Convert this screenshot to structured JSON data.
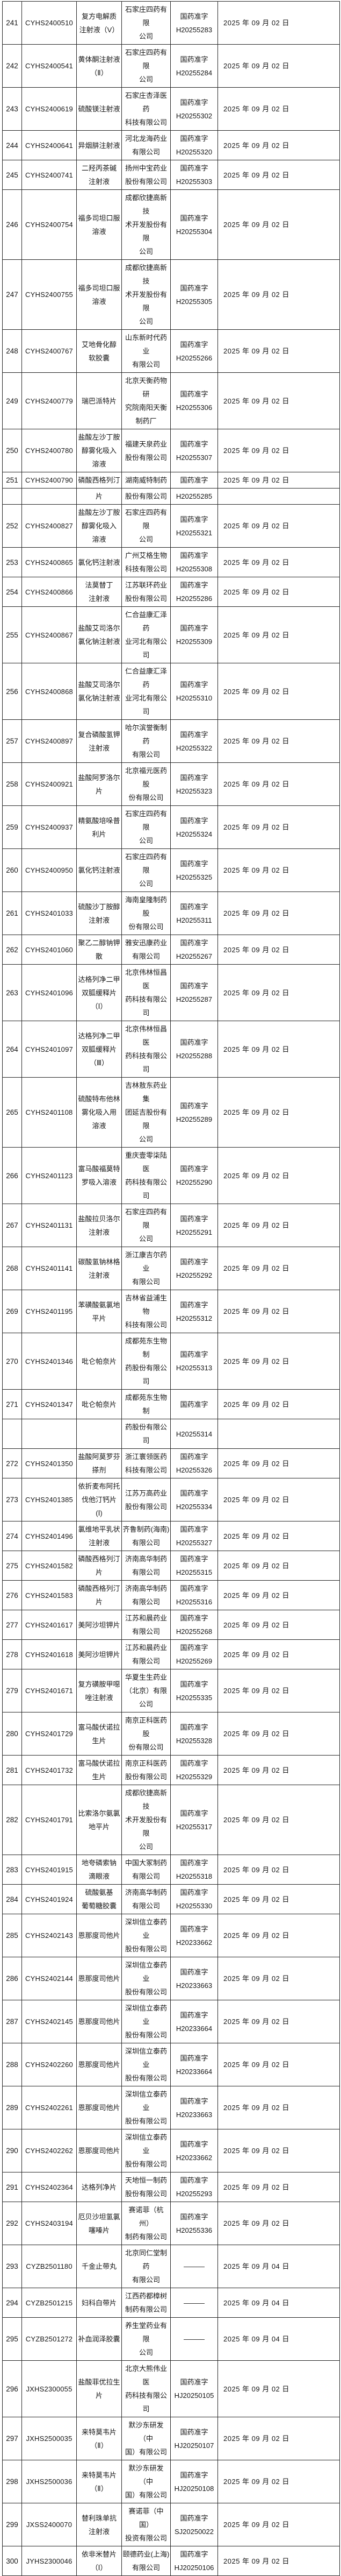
{
  "table": {
    "description_labels": {
      "approval_prefix": "国药准字",
      "no_approval_dash": "———"
    },
    "rows": [
      {
        "no": "241",
        "code": "CYHS2400510",
        "drug": "复方电解质\n注射液（V）",
        "company": "石家庄四药有限\n公司",
        "reg": "国药准字\nH20255283",
        "date": "2025 年 09 月 02 日",
        "fragment": false
      },
      {
        "no": "242",
        "code": "CYHS2400541",
        "drug": "黄体酮注射液\n（Ⅱ）",
        "company": "石家庄四药有限\n公司",
        "reg": "国药准字\nH20255284",
        "date": "2025 年 09 月 02 日",
        "fragment": false
      },
      {
        "no": "243",
        "code": "CYHS2400619",
        "drug": "硫酸镁注射液",
        "company": "石家庄杏泽医药\n科技有限公司",
        "reg": "国药准字\nH20255302",
        "date": "2025 年 09 月 02 日",
        "fragment": false
      },
      {
        "no": "244",
        "code": "CYHS2400641",
        "drug": "异烟肼注射液",
        "company": "河北龙海药业\n有限公司",
        "reg": "国药准字\nH20255320",
        "date": "2025 年 09 月 02 日",
        "fragment": false
      },
      {
        "no": "245",
        "code": "CYHS2400741",
        "drug": "二羟丙茶碱\n注射液",
        "company": "扬州中宝药业\n股份有限公司",
        "reg": "国药准字\nH20255303",
        "date": "2025 年 09 月 02 日",
        "fragment": false
      },
      {
        "no": "246",
        "code": "CYHS2400754",
        "drug": "福多司坦口服\n溶液",
        "company": "成都欣捷高新技\n术开发股份有限\n公司",
        "reg": "国药准字\nH20255304",
        "date": "2025 年 09 月 02 日",
        "fragment": false
      },
      {
        "no": "247",
        "code": "CYHS2400755",
        "drug": "福多司坦口服\n溶液",
        "company": "成都欣捷高新技\n术开发股份有限\n公司",
        "reg": "国药准字\nH20255305",
        "date": "2025 年 09 月 02 日",
        "fragment": false
      },
      {
        "no": "248",
        "code": "CYHS2400767",
        "drug": "艾地骨化醇\n软胶囊",
        "company": "山东新时代药业\n有限公司",
        "reg": "国药准字\nH20255266",
        "date": "2025 年 09 月 02 日",
        "fragment": false
      },
      {
        "no": "249",
        "code": "CYHS2400779",
        "drug": "瑞巴派特片",
        "company": "北京天衡药物研\n究院南阳天衡\n制药厂",
        "reg": "国药准字\nH20255306",
        "date": "2025 年 09 月 02 日",
        "fragment": false
      },
      {
        "no": "250",
        "code": "CYHS2400780",
        "drug": "盐酸左沙丁胺\n醇雾化吸入\n溶液",
        "company": "福建天泉药业\n股份有限公司",
        "reg": "国药准字\nH20255307",
        "date": "2025 年 09 月 02 日",
        "fragment": false
      },
      {
        "no": "251",
        "code": "CYHS2400790",
        "drug": "磷酸西格列汀",
        "company": "湖南威特制药",
        "reg": "国药准字",
        "date": "2025 年 09 月 02 日",
        "fragment": false
      },
      {
        "no": "",
        "code": "",
        "drug": "片",
        "company": "股份有限公司",
        "reg": "H20255285",
        "date": "",
        "fragment": true
      },
      {
        "no": "252",
        "code": "CYHS2400827",
        "drug": "盐酸左沙丁胺\n醇雾化吸入\n溶液",
        "company": "石家庄四药有限\n公司",
        "reg": "国药准字\nH20255321",
        "date": "2025 年 09 月 02 日",
        "fragment": false
      },
      {
        "no": "253",
        "code": "CYHS2400865",
        "drug": "氯化钙注射液",
        "company": "广州艾格生物\n科技有限公司",
        "reg": "国药准字\nH20255308",
        "date": "2025 年 09 月 02 日",
        "fragment": false
      },
      {
        "no": "254",
        "code": "CYHS2400866",
        "drug": "法莫替丁\n注射液",
        "company": "江苏联环药业\n股份有限公司",
        "reg": "国药准字\nH20255286",
        "date": "2025 年 09 月 02 日",
        "fragment": false
      },
      {
        "no": "255",
        "code": "CYHS2400867",
        "drug": "盐酸艾司洛尔\n氯化钠注射液",
        "company": "仁合益康汇泽药\n业河北有限公司",
        "reg": "国药准字\nH20255309",
        "date": "2025 年 09 月 02 日",
        "fragment": false
      },
      {
        "no": "256",
        "code": "CYHS2400868",
        "drug": "盐酸艾司洛尔\n氯化钠注射液",
        "company": "仁合益康汇泽药\n业河北有限公司",
        "reg": "国药准字\nH20255310",
        "date": "2025 年 09 月 02 日",
        "fragment": false
      },
      {
        "no": "257",
        "code": "CYHS2400897",
        "drug": "复合磷酸氢钾\n注射液",
        "company": "哈尔滨誉衡制药\n有限公司",
        "reg": "国药准字\nH20255322",
        "date": "2025 年 09 月 02 日",
        "fragment": false
      },
      {
        "no": "258",
        "code": "CYHS2400921",
        "drug": "盐酸阿罗洛尔\n片",
        "company": "北京福元医药股\n份有限公司",
        "reg": "国药准字\nH20255323",
        "date": "2025 年 09 月 02 日",
        "fragment": false
      },
      {
        "no": "259",
        "code": "CYHS2400937",
        "drug": "精氨酸培哚普\n利片",
        "company": "石家庄四药有限\n公司",
        "reg": "国药准字\nH20255324",
        "date": "2025 年 09 月 02 日",
        "fragment": false
      },
      {
        "no": "260",
        "code": "CYHS2400950",
        "drug": "氯化钙注射液",
        "company": "石家庄四药有限\n公司",
        "reg": "国药准字\nH20255325",
        "date": "2025 年 09 月 02 日",
        "fragment": false
      },
      {
        "no": "261",
        "code": "CYHS2401033",
        "drug": "硫酸沙丁胺醇\n注射液",
        "company": "海南皇隆制药股\n份有限公司",
        "reg": "国药准字\nH20255311",
        "date": "2025 年 09 月 02 日",
        "fragment": false
      },
      {
        "no": "262",
        "code": "CYHS2401060",
        "drug": "聚乙二醇钠钾\n散",
        "company": "雅安迅康药业\n有限公司",
        "reg": "国药准字\nH20255267",
        "date": "2025 年 09 月 02 日",
        "fragment": false
      },
      {
        "no": "263",
        "code": "CYHS2401096",
        "drug": "达格列净二甲\n双胍缓释片\n（Ⅰ）",
        "company": "北京伟林恒昌医\n药科技有限公司",
        "reg": "国药准字\nH20255287",
        "date": "2025 年 09 月 02 日",
        "fragment": false
      },
      {
        "no": "264",
        "code": "CYHS2401097",
        "drug": "达格列净二甲\n双胍缓释片\n（Ⅲ）",
        "company": "北京伟林恒昌医\n药科技有限公司",
        "reg": "国药准字\nH20255288",
        "date": "2025 年 09 月 02 日",
        "fragment": false
      },
      {
        "no": "265",
        "code": "CYHS2401108",
        "drug": "硫酸特布他林\n雾化吸入用\n溶液",
        "company": "吉林敖东药业集\n团延吉股份有限\n公司",
        "reg": "国药准字\nH20255289",
        "date": "2025 年 09 月 02 日",
        "fragment": false
      },
      {
        "no": "266",
        "code": "CYHS2401123",
        "drug": "富马酸福莫特\n罗吸入溶液",
        "company": "重庆壹零柒陆医\n药科技有限公司",
        "reg": "国药准字\nH20255290",
        "date": "2025 年 09 月 02 日",
        "fragment": false
      },
      {
        "no": "267",
        "code": "CYHS2401131",
        "drug": "盐酸拉贝洛尔\n注射液",
        "company": "石家庄四药有限\n公司",
        "reg": "国药准字\nH20255291",
        "date": "2025 年 09 月 02 日",
        "fragment": false
      },
      {
        "no": "268",
        "code": "CYHS2401141",
        "drug": "碳酸氢钠林格\n注射液",
        "company": "浙江康吉尔药业\n有限公司",
        "reg": "国药准字\nH20255292",
        "date": "2025 年 09 月 02 日",
        "fragment": false
      },
      {
        "no": "269",
        "code": "CYHS2401195",
        "drug": "苯磺酸氨氯地\n平片",
        "company": "吉林省益浦生物\n科技有限公司",
        "reg": "国药准字\nH20255312",
        "date": "2025 年 09 月 02 日",
        "fragment": false
      },
      {
        "no": "270",
        "code": "CYHS2401346",
        "drug": "吡仑帕奈片",
        "company": "成都苑东生物制\n药股份有限公司",
        "reg": "国药准字\nH20255313",
        "date": "2025 年 09 月 02 日",
        "fragment": false
      },
      {
        "no": "271",
        "code": "CYHS2401347",
        "drug": "吡仑帕奈片",
        "company": "成都苑东生物制",
        "reg": "国药准字",
        "date": "2025 年 09 月 02 日",
        "fragment": false
      },
      {
        "no": "",
        "code": "",
        "drug": "",
        "company": "药股份有限公司",
        "reg": "H20255314",
        "date": "",
        "fragment": true
      },
      {
        "no": "272",
        "code": "CYHS2401350",
        "drug": "盐酸阿莫罗芬\n搽剂",
        "company": "浙江寰领医药\n科技有限公司",
        "reg": "国药准字\nH20255326",
        "date": "2025 年 09 月 02 日",
        "fragment": false
      },
      {
        "no": "273",
        "code": "CYHS2401385",
        "drug": "依折麦布阿托\n伐他汀钙片\n(Ⅰ)",
        "company": "江苏万高药业\n股份有限公司",
        "reg": "国药准字\nH20255334",
        "date": "2025 年 09 月 02 日",
        "fragment": false
      },
      {
        "no": "274",
        "code": "CYHS2401496",
        "drug": "氯维地平乳状\n注射液",
        "company": "齐鲁制药(海南)\n有限公司",
        "reg": "国药准字\nH20255327",
        "date": "2025 年 09 月 02 日",
        "fragment": false
      },
      {
        "no": "275",
        "code": "CYHS2401582",
        "drug": "磷酸西格列汀\n片",
        "company": "济南高华制药\n有限公司",
        "reg": "国药准字\nH20255315",
        "date": "2025 年 09 月 02 日",
        "fragment": false
      },
      {
        "no": "276",
        "code": "CYHS2401583",
        "drug": "磷酸西格列汀\n片",
        "company": "济南高华制药\n有限公司",
        "reg": "国药准字\nH20255316",
        "date": "2025 年 09 月 02 日",
        "fragment": false
      },
      {
        "no": "277",
        "code": "CYHS2401617",
        "drug": "美阿沙坦钾片",
        "company": "江苏和晨药业\n有限公司",
        "reg": "国药准字\nH20255268",
        "date": "2025 年 09 月 02 日",
        "fragment": false
      },
      {
        "no": "278",
        "code": "CYHS2401618",
        "drug": "美阿沙坦钾片",
        "company": "江苏和晨药业\n有限公司",
        "reg": "国药准字\nH20255269",
        "date": "2025 年 09 月 02 日",
        "fragment": false
      },
      {
        "no": "279",
        "code": "CYHS2401671",
        "drug": "复方磺胺甲噁\n唑注射液",
        "company": "华夏生生药业\n（北京）有限\n公司",
        "reg": "国药准字\nH20255335",
        "date": "2025 年 09 月 02 日",
        "fragment": false
      },
      {
        "no": "280",
        "code": "CYHS2401729",
        "drug": "富马酸伏诺拉\n生片",
        "company": "南京正科医药股\n份有限公司",
        "reg": "国药准字\nH20255328",
        "date": "2025 年 09 月 02 日",
        "fragment": false
      },
      {
        "no": "281",
        "code": "CYHS2401732",
        "drug": "富马酸伏诺拉\n生片",
        "company": "南京正科医药\n股份有限公司",
        "reg": "国药准字\nH20255329",
        "date": "2025 年 09 月 02 日",
        "fragment": false
      },
      {
        "no": "282",
        "code": "CYHS2401791",
        "drug": "比索洛尔氨氯\n地平片",
        "company": "成都欣捷高新技\n术开发股份有限\n公司",
        "reg": "国药准字\nH20255317",
        "date": "2025 年 09 月 02 日",
        "fragment": false
      },
      {
        "no": "283",
        "code": "CYHS2401915",
        "drug": "地夸磷索钠\n滴眼液",
        "company": "中国大冢制药\n有限公司",
        "reg": "国药准字\nH20255318",
        "date": "2025 年 09 月 02 日",
        "fragment": false
      },
      {
        "no": "284",
        "code": "CYHS2401924",
        "drug": "硫酸氨基\n葡萄糖胶囊",
        "company": "济南高华制药\n有限公司",
        "reg": "国药准字\nH20255330",
        "date": "2025 年 09 月 02 日",
        "fragment": false
      },
      {
        "no": "285",
        "code": "CYHS2402143",
        "drug": "恩那度司他片",
        "company": "深圳信立泰药业\n股份有限公司",
        "reg": "国药准字\nH20233662",
        "date": "2025 年 09 月 02 日",
        "fragment": false
      },
      {
        "no": "286",
        "code": "CYHS2402144",
        "drug": "恩那度司他片",
        "company": "深圳信立泰药业\n股份有限公司",
        "reg": "国药准字\nH20233663",
        "date": "2025 年 09 月 02 日",
        "fragment": false
      },
      {
        "no": "287",
        "code": "CYHS2402145",
        "drug": "恩那度司他片",
        "company": "深圳信立泰药业\n股份有限公司",
        "reg": "国药准字\nH20233664",
        "date": "2025 年 09 月 02 日",
        "fragment": false
      },
      {
        "no": "288",
        "code": "CYHS2402260",
        "drug": "恩那度司他片",
        "company": "深圳信立泰药业\n股份有限公司",
        "reg": "国药准字\nH20233664",
        "date": "2025 年 09 月 02 日",
        "fragment": false
      },
      {
        "no": "289",
        "code": "CYHS2402261",
        "drug": "恩那度司他片",
        "company": "深圳信立泰药业\n股份有限公司",
        "reg": "国药准字\nH20233663",
        "date": "2025 年 09 月 02 日",
        "fragment": false
      },
      {
        "no": "290",
        "code": "CYHS2402262",
        "drug": "恩那度司他片",
        "company": "深圳信立泰药业\n股份有限公司",
        "reg": "国药准字\nH20233662",
        "date": "2025 年 09 月 02 日",
        "fragment": false
      },
      {
        "no": "291",
        "code": "CYHS2402364",
        "drug": "达格列净片",
        "company": "天地恒一制药\n股份有限公司",
        "reg": "国药准字\nH20255293",
        "date": "2025 年 09 月 02 日",
        "fragment": false
      },
      {
        "no": "292",
        "code": "CYHS2403194",
        "drug": "厄贝沙坦氢氯\n噻嗪片",
        "company": "赛诺菲（杭州）\n制药有限公司",
        "reg": "国药准字\nH20255336",
        "date": "2025 年 09 月 02 日",
        "fragment": false
      },
      {
        "no": "293",
        "code": "CYZB2501180",
        "drug": "千金止带丸",
        "company": "北京同仁堂制药\n有限公司",
        "reg": "———",
        "date": "2025 年 09 月 04 日",
        "fragment": false
      },
      {
        "no": "294",
        "code": "CYZB2501215",
        "drug": "妇科白带片",
        "company": "江西药都樟树\n制药有限公司",
        "reg": "———",
        "date": "2025 年 09 月 04 日",
        "fragment": false
      },
      {
        "no": "295",
        "code": "CYZB2501272",
        "drug": "补血润泽胶囊",
        "company": "养生堂药业有限\n公司",
        "reg": "———",
        "date": "2025 年 09 月 04 日",
        "fragment": false
      },
      {
        "no": "296",
        "code": "JXHS2300055",
        "drug": "盐酸菲优拉生\n片",
        "company": "北京大熊伟业医\n药科技有限公司",
        "reg": "国药准字\nHJ20250105",
        "date": "2025 年 09 月 02 日",
        "fragment": false
      },
      {
        "no": "297",
        "code": "JXHS2500035",
        "drug": "来特莫韦片\n（Ⅱ）",
        "company": "默沙东研发（中\n国）有限公司",
        "reg": "国药准字\nHJ20250107",
        "date": "2025 年 09 月 02 日",
        "fragment": false
      },
      {
        "no": "298",
        "code": "JXHS2500036",
        "drug": "来特莫韦片\n（Ⅱ）",
        "company": "默沙东研发（中\n国）有限公司",
        "reg": "国药准字\nHJ20250108",
        "date": "2025 年 09 月 02 日",
        "fragment": false
      },
      {
        "no": "299",
        "code": "JXSS2400070",
        "drug": "替利珠单抗\n注射液",
        "company": "赛诺菲（中国）\n投资有限公司",
        "reg": "国药准字\nSJ20250022",
        "date": "2025 年 09 月 02 日",
        "fragment": false
      },
      {
        "no": "300",
        "code": "JYHS2300046",
        "drug": "依非米替片\n（Ⅰ）",
        "company": "颐德药业(上海)\n有限公司",
        "reg": "国药准字\nHJ20250106",
        "date": "2025 年 09 月 02 日",
        "fragment": false
      }
    ]
  }
}
